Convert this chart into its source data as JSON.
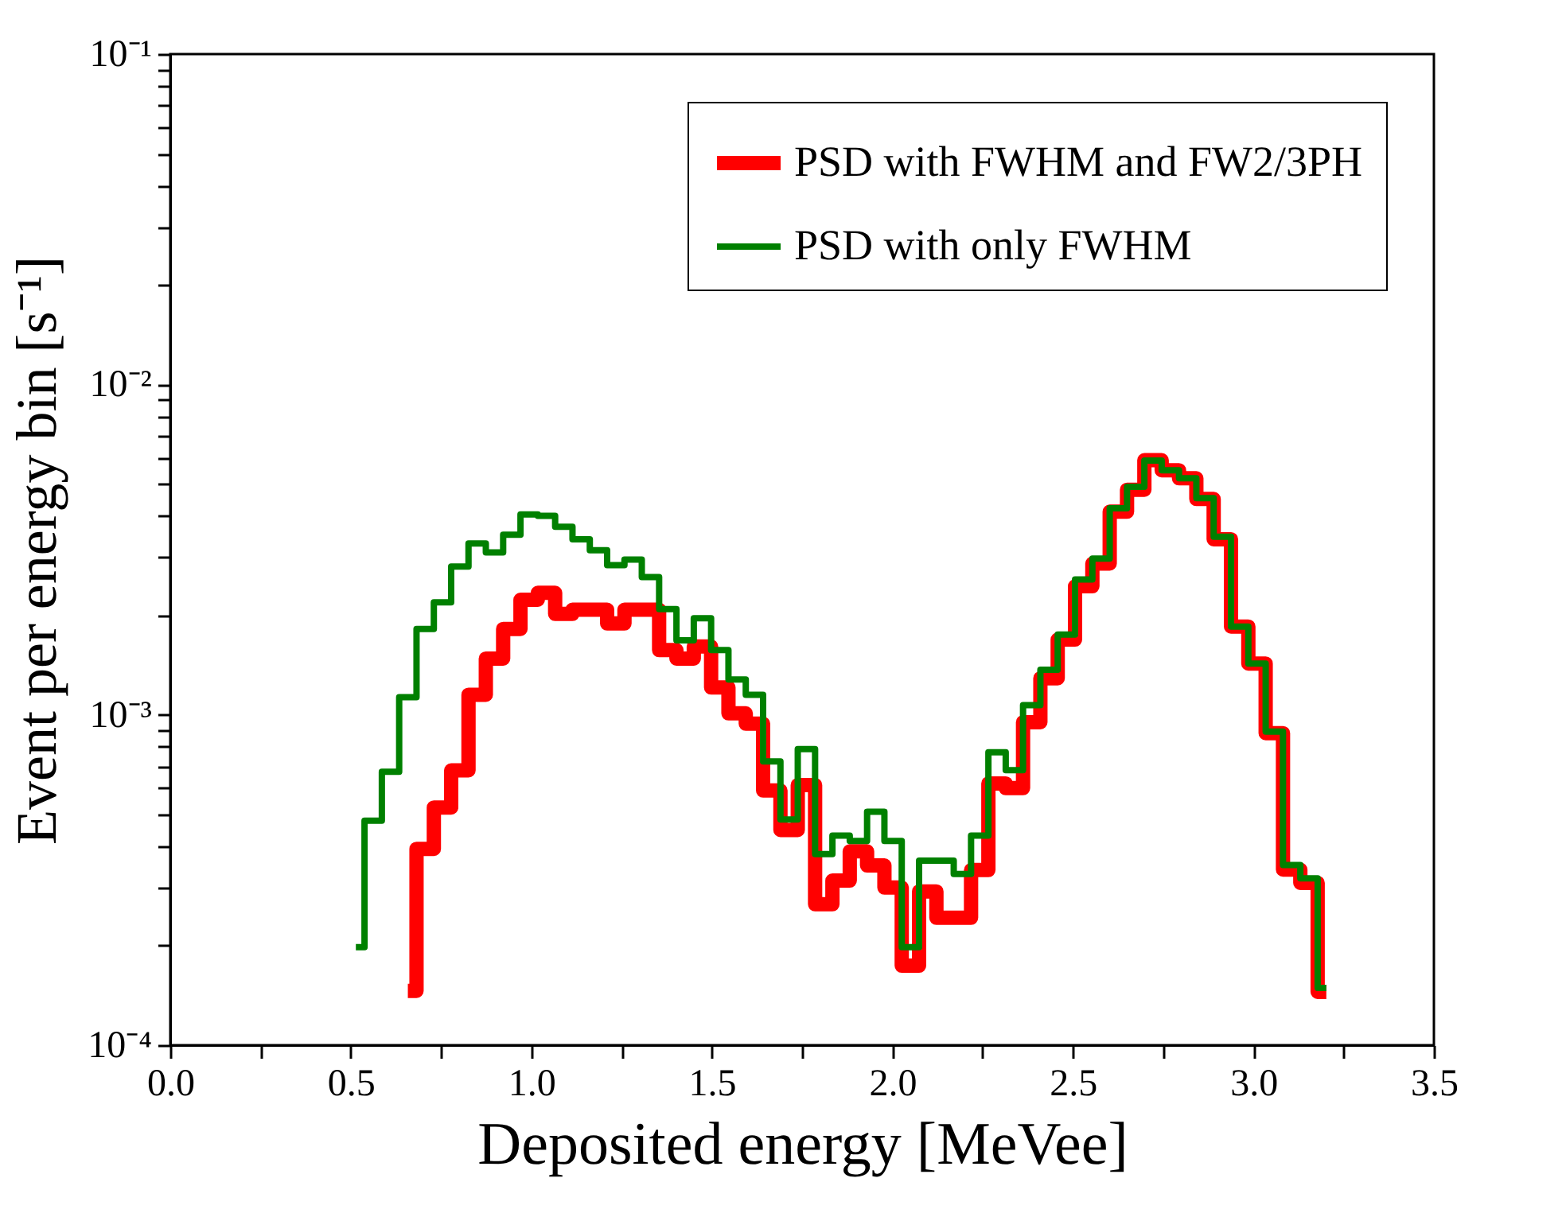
{
  "chart_data": {
    "type": "step",
    "xlabel": "Deposited energy [MeVee]",
    "ylabel": "Event per energy bin [s⁻¹]",
    "log": "y",
    "legend": "top right",
    "x": [
      0.514,
      0.562,
      0.61,
      0.658,
      0.706,
      0.754,
      0.802,
      0.85,
      0.898,
      0.946,
      0.994,
      1.042,
      1.09,
      1.138,
      1.186,
      1.234,
      1.282,
      1.33,
      1.378,
      1.426,
      1.474,
      1.522,
      1.57,
      1.618,
      1.666,
      1.714,
      1.762,
      1.81,
      1.858,
      1.906,
      1.954,
      2.002,
      2.05,
      2.098,
      2.146,
      2.194,
      2.242,
      2.29,
      2.338,
      2.386,
      2.434,
      2.482,
      2.53,
      2.578,
      2.626,
      2.674,
      2.722,
      2.77,
      2.818,
      2.866,
      2.914,
      2.962,
      3.01,
      3.058,
      3.106,
      3.154,
      3.202
    ],
    "series": [
      {
        "name": "PSD with FWHM and FW2/3PH",
        "color": "#ff0000",
        "values": [
          null,
          null,
          null,
          0.000146,
          0.000393,
          0.000524,
          0.000679,
          0.00115,
          0.00148,
          0.00182,
          0.00223,
          0.00234,
          0.00202,
          0.00208,
          0.00208,
          0.00189,
          0.00208,
          0.00208,
          0.00157,
          0.00148,
          0.00161,
          0.00121,
          0.00101,
          0.00094,
          0.00059,
          0.000448,
          0.000613,
          0.000267,
          0.000315,
          0.000386,
          0.00035,
          0.0003,
          0.000174,
          0.000292,
          0.000243,
          0.000243,
          0.000339,
          0.00062,
          0.0006,
          0.00095,
          0.00129,
          0.00169,
          0.00245,
          0.00287,
          0.00412,
          0.0048,
          0.0059,
          0.0055,
          0.0052,
          0.0045,
          0.0034,
          0.00185,
          0.00143,
          0.00088,
          0.00034,
          0.00031,
          0.000145
        ]
      },
      {
        "name": "PSD with only FWHM",
        "color": "#008000",
        "values": [
          0.000198,
          0.000478,
          0.000672,
          0.00113,
          0.00182,
          0.00219,
          0.00281,
          0.0033,
          0.0031,
          0.00351,
          0.00404,
          0.004,
          0.00371,
          0.0034,
          0.00315,
          0.00284,
          0.00295,
          0.00261,
          0.00209,
          0.00168,
          0.00196,
          0.00157,
          0.00128,
          0.00115,
          0.000723,
          0.000482,
          0.000788,
          0.000379,
          0.000431,
          0.000415,
          0.000509,
          0.000415,
          0.000198,
          0.000362,
          0.000362,
          0.00033,
          0.000431,
          0.00077,
          0.00068,
          0.00107,
          0.00137,
          0.00175,
          0.00257,
          0.00297,
          0.00422,
          0.0049,
          0.00588,
          0.0055,
          0.0052,
          0.00453,
          0.00346,
          0.00185,
          0.00143,
          0.00089,
          0.000351,
          0.00032,
          0.000149
        ]
      }
    ],
    "xlim": [
      0,
      3.5
    ],
    "xticks": [
      {
        "value": 0,
        "label": "0.0"
      },
      {
        "value": 0.25,
        "label": null
      },
      {
        "value": 0.5,
        "label": "0.5"
      },
      {
        "value": 0.75,
        "label": null
      },
      {
        "value": 1,
        "label": "1.0"
      },
      {
        "value": 1.25,
        "label": null
      },
      {
        "value": 1.5,
        "label": "1.5"
      },
      {
        "value": 1.75,
        "label": null
      },
      {
        "value": 2,
        "label": "2.0"
      },
      {
        "value": 2.25,
        "label": null
      },
      {
        "value": 2.5,
        "label": "2.5"
      },
      {
        "value": 2.75,
        "label": null
      },
      {
        "value": 3,
        "label": "3.0"
      },
      {
        "value": 3.25,
        "label": null
      },
      {
        "value": 3.5,
        "label": "3.5"
      }
    ],
    "ylim": [
      0.0001,
      0.1
    ],
    "yticks": [
      {
        "value": 0.0001,
        "label": "10⁻⁴"
      },
      {
        "value": 0.0002,
        "label": null
      },
      {
        "value": 0.0003,
        "label": null
      },
      {
        "value": 0.0004,
        "label": null
      },
      {
        "value": 0.0005,
        "label": null
      },
      {
        "value": 0.0006,
        "label": null
      },
      {
        "value": 0.0007,
        "label": null
      },
      {
        "value": 0.0008,
        "label": null
      },
      {
        "value": 0.0009,
        "label": null
      },
      {
        "value": 0.001,
        "label": "10⁻³"
      },
      {
        "value": 0.002,
        "label": null
      },
      {
        "value": 0.003,
        "label": null
      },
      {
        "value": 0.004,
        "label": null
      },
      {
        "value": 0.005,
        "label": null
      },
      {
        "value": 0.006,
        "label": null
      },
      {
        "value": 0.007,
        "label": null
      },
      {
        "value": 0.008,
        "label": null
      },
      {
        "value": 0.009,
        "label": null
      },
      {
        "value": 0.01,
        "label": "10⁻²"
      },
      {
        "value": 0.02,
        "label": null
      },
      {
        "value": 0.03,
        "label": null
      },
      {
        "value": 0.04,
        "label": null
      },
      {
        "value": 0.05,
        "label": null
      },
      {
        "value": 0.06,
        "label": null
      },
      {
        "value": 0.07,
        "label": null
      },
      {
        "value": 0.08,
        "label": null
      },
      {
        "value": 0.09,
        "label": null
      },
      {
        "value": 0.1,
        "label": "10⁻¹"
      }
    ]
  }
}
